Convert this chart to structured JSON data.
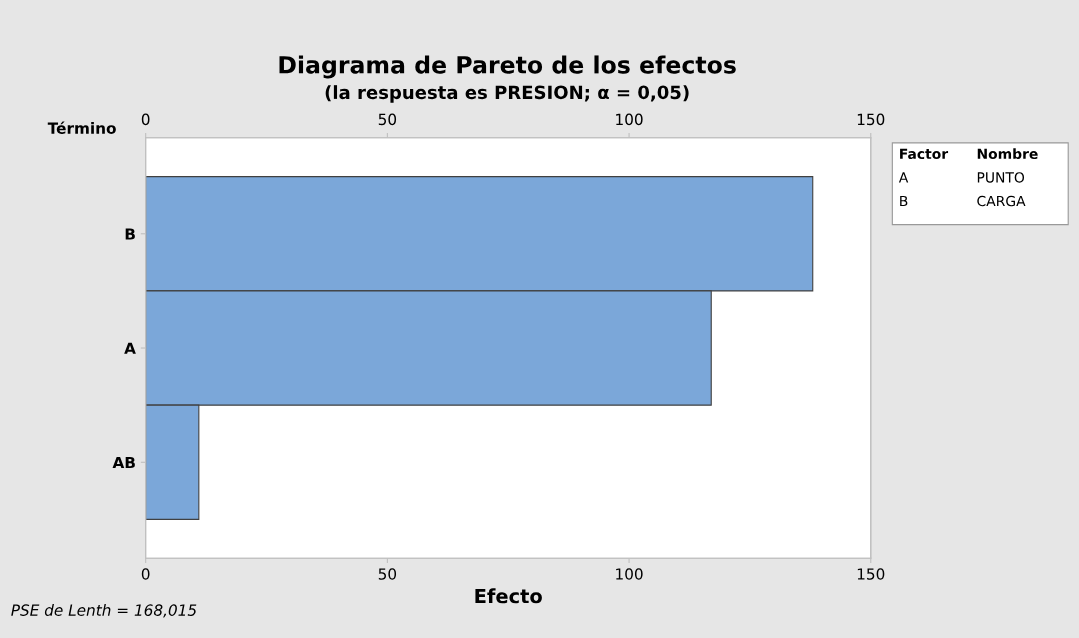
{
  "chart_data": {
    "type": "bar",
    "orientation": "horizontal",
    "title": "Diagrama de Pareto de los efectos",
    "subtitle": "(la respuesta es PRESION; α = 0,05)",
    "xlabel": "Efecto",
    "ylabel": "Término",
    "categories": [
      "B",
      "A",
      "AB"
    ],
    "values": [
      138,
      117,
      11
    ],
    "color": "#7ba7d9",
    "xlim": [
      0,
      150
    ],
    "xticks": [
      0,
      50,
      100,
      150
    ],
    "x2lim": [
      0,
      150
    ],
    "x2ticks": [
      0,
      50,
      100,
      150
    ],
    "grid": false,
    "legend": false,
    "annotations": [
      "PSE de Lenth = 168,015",
      "Factor",
      "Nombre",
      "A",
      "PUNTO",
      "B",
      "CARGA"
    ]
  }
}
